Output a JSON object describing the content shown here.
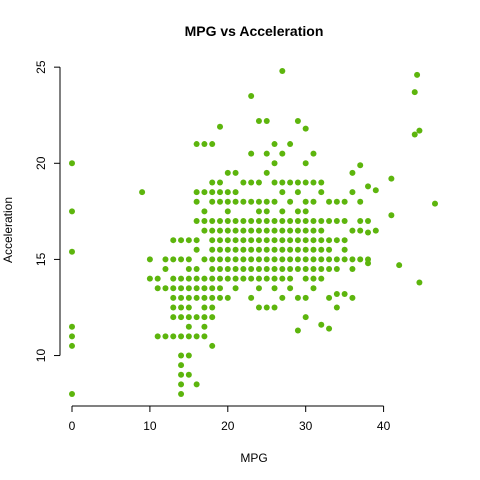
{
  "chart_data": {
    "type": "scatter",
    "title": "MPG vs Acceleration",
    "xlabel": "MPG",
    "ylabel": "Acceleration",
    "xlim": [
      0,
      46.6
    ],
    "ylim": [
      8,
      24.8
    ],
    "xticks": [
      0,
      10,
      20,
      30,
      40
    ],
    "yticks": [
      10,
      15,
      20,
      25
    ],
    "grid": false,
    "legend": "none",
    "point_color": "#5DB50D",
    "points": [
      [
        0,
        8
      ],
      [
        0,
        10.5
      ],
      [
        0,
        11
      ],
      [
        0,
        11.5
      ],
      [
        0,
        15.4
      ],
      [
        0,
        17.5
      ],
      [
        0,
        20
      ],
      [
        9,
        18.5
      ],
      [
        10,
        14
      ],
      [
        10,
        15
      ],
      [
        11,
        14
      ],
      [
        11,
        11
      ],
      [
        11,
        13.5
      ],
      [
        12,
        11
      ],
      [
        12,
        13.5
      ],
      [
        12,
        14.5
      ],
      [
        12,
        15
      ],
      [
        13,
        11
      ],
      [
        13,
        12
      ],
      [
        13,
        12.5
      ],
      [
        13,
        13
      ],
      [
        13,
        13.5
      ],
      [
        13,
        14
      ],
      [
        13,
        15
      ],
      [
        13,
        16
      ],
      [
        14,
        8
      ],
      [
        14,
        8.5
      ],
      [
        14,
        9
      ],
      [
        14,
        9.5
      ],
      [
        14,
        10
      ],
      [
        14,
        11
      ],
      [
        14,
        12
      ],
      [
        14,
        12.5
      ],
      [
        14,
        13
      ],
      [
        14,
        13.5
      ],
      [
        14,
        14
      ],
      [
        14,
        15
      ],
      [
        14,
        16
      ],
      [
        15,
        9
      ],
      [
        15,
        10
      ],
      [
        15,
        11
      ],
      [
        15,
        11.5
      ],
      [
        15,
        12
      ],
      [
        15,
        12.5
      ],
      [
        15,
        13
      ],
      [
        15,
        13.5
      ],
      [
        15,
        14
      ],
      [
        15,
        14.5
      ],
      [
        15,
        15
      ],
      [
        15,
        16
      ],
      [
        16,
        8.5
      ],
      [
        16,
        11
      ],
      [
        16,
        12
      ],
      [
        16,
        13
      ],
      [
        16,
        13.5
      ],
      [
        16,
        14
      ],
      [
        16,
        14.5
      ],
      [
        16,
        15.5
      ],
      [
        16,
        16
      ],
      [
        16,
        17
      ],
      [
        16,
        18
      ],
      [
        16,
        21
      ],
      [
        16,
        18.5
      ],
      [
        17,
        11
      ],
      [
        17,
        12
      ],
      [
        17,
        13
      ],
      [
        17,
        13.5
      ],
      [
        17,
        14
      ],
      [
        17,
        15
      ],
      [
        17,
        16.5
      ],
      [
        17,
        17
      ],
      [
        17,
        17.5
      ],
      [
        17,
        18.5
      ],
      [
        17,
        21
      ],
      [
        17,
        11.5
      ],
      [
        17,
        12.5
      ],
      [
        18,
        10.5
      ],
      [
        18,
        12
      ],
      [
        18,
        13
      ],
      [
        18,
        13.5
      ],
      [
        18,
        14
      ],
      [
        18,
        15
      ],
      [
        18,
        15.5
      ],
      [
        18,
        16
      ],
      [
        18,
        16.5
      ],
      [
        18,
        17
      ],
      [
        18,
        18
      ],
      [
        18,
        18.5
      ],
      [
        18,
        19
      ],
      [
        18,
        21
      ],
      [
        18,
        14.5
      ],
      [
        18,
        12.5
      ],
      [
        19,
        13
      ],
      [
        19,
        13.5
      ],
      [
        19,
        14
      ],
      [
        19,
        15
      ],
      [
        19,
        15.5
      ],
      [
        19,
        16
      ],
      [
        19,
        16.5
      ],
      [
        19,
        17
      ],
      [
        19,
        18
      ],
      [
        19,
        18.5
      ],
      [
        19,
        19
      ],
      [
        19,
        21.9
      ],
      [
        19,
        14.5
      ],
      [
        20,
        13
      ],
      [
        20,
        14
      ],
      [
        20,
        15
      ],
      [
        20,
        15.5
      ],
      [
        20,
        16
      ],
      [
        20,
        17
      ],
      [
        20,
        17.5
      ],
      [
        20,
        18
      ],
      [
        20,
        18.5
      ],
      [
        20,
        19.5
      ],
      [
        20,
        14.5
      ],
      [
        20,
        16.5
      ],
      [
        21,
        13.5
      ],
      [
        21,
        14
      ],
      [
        21,
        14.5
      ],
      [
        21,
        15
      ],
      [
        21,
        15.5
      ],
      [
        21,
        16
      ],
      [
        21,
        16.5
      ],
      [
        21,
        17
      ],
      [
        21,
        18
      ],
      [
        21,
        18.5
      ],
      [
        21,
        19.5
      ],
      [
        22,
        14
      ],
      [
        22,
        14.5
      ],
      [
        22,
        15
      ],
      [
        22,
        16
      ],
      [
        22,
        16.5
      ],
      [
        22,
        17
      ],
      [
        22,
        18
      ],
      [
        22,
        19
      ],
      [
        22,
        15.5
      ],
      [
        23,
        13
      ],
      [
        23,
        14
      ],
      [
        23,
        14.5
      ],
      [
        23,
        15
      ],
      [
        23,
        15.5
      ],
      [
        23,
        16
      ],
      [
        23,
        16.5
      ],
      [
        23,
        17
      ],
      [
        23,
        18
      ],
      [
        23,
        19
      ],
      [
        23,
        20.5
      ],
      [
        23,
        23.5
      ],
      [
        24,
        12.5
      ],
      [
        24,
        14
      ],
      [
        24,
        14.5
      ],
      [
        24,
        15
      ],
      [
        24,
        15.5
      ],
      [
        24,
        16
      ],
      [
        24,
        16.5
      ],
      [
        24,
        17
      ],
      [
        24,
        17.5
      ],
      [
        24,
        18
      ],
      [
        24,
        19
      ],
      [
        24,
        22.2
      ],
      [
        24,
        13.5
      ],
      [
        25,
        12.5
      ],
      [
        25,
        14
      ],
      [
        25,
        14.5
      ],
      [
        25,
        15
      ],
      [
        25,
        15.5
      ],
      [
        25,
        16
      ],
      [
        25,
        16.5
      ],
      [
        25,
        17
      ],
      [
        25,
        17.5
      ],
      [
        25,
        18
      ],
      [
        25,
        19.5
      ],
      [
        25,
        20.5
      ],
      [
        25,
        22.2
      ],
      [
        26,
        12.5
      ],
      [
        26,
        13.5
      ],
      [
        26,
        14
      ],
      [
        26,
        14.5
      ],
      [
        26,
        15
      ],
      [
        26,
        15.5
      ],
      [
        26,
        16
      ],
      [
        26,
        16.5
      ],
      [
        26,
        17
      ],
      [
        26,
        18
      ],
      [
        26,
        19
      ],
      [
        26,
        20
      ],
      [
        26,
        21
      ],
      [
        27,
        13
      ],
      [
        27,
        14
      ],
      [
        27,
        14.5
      ],
      [
        27,
        15
      ],
      [
        27,
        15.5
      ],
      [
        27,
        16
      ],
      [
        27,
        16.5
      ],
      [
        27,
        17
      ],
      [
        27,
        17.5
      ],
      [
        27,
        18.5
      ],
      [
        27,
        19
      ],
      [
        27,
        20.5
      ],
      [
        27,
        24.8
      ],
      [
        28,
        13.5
      ],
      [
        28,
        14
      ],
      [
        28,
        14.5
      ],
      [
        28,
        15
      ],
      [
        28,
        15.5
      ],
      [
        28,
        16
      ],
      [
        28,
        16.5
      ],
      [
        28,
        17
      ],
      [
        28,
        18
      ],
      [
        28,
        19
      ],
      [
        28,
        21
      ],
      [
        29,
        11.3
      ],
      [
        29,
        13
      ],
      [
        29,
        14.5
      ],
      [
        29,
        15
      ],
      [
        29,
        16
      ],
      [
        29,
        16.5
      ],
      [
        29,
        17
      ],
      [
        29,
        17.5
      ],
      [
        29,
        18.5
      ],
      [
        29,
        19
      ],
      [
        29,
        22.2
      ],
      [
        29,
        15.5
      ],
      [
        30,
        12
      ],
      [
        30,
        13
      ],
      [
        30,
        14
      ],
      [
        30,
        14.5
      ],
      [
        30,
        15
      ],
      [
        30,
        15.5
      ],
      [
        30,
        16
      ],
      [
        30,
        16.5
      ],
      [
        30,
        17
      ],
      [
        30,
        17.5
      ],
      [
        30,
        18
      ],
      [
        30,
        19
      ],
      [
        30,
        20
      ],
      [
        30,
        21.8
      ],
      [
        31,
        13.5
      ],
      [
        31,
        14
      ],
      [
        31,
        14.5
      ],
      [
        31,
        15
      ],
      [
        31,
        15.5
      ],
      [
        31,
        16
      ],
      [
        31,
        16.5
      ],
      [
        31,
        17
      ],
      [
        31,
        18
      ],
      [
        31,
        19
      ],
      [
        31,
        20.5
      ],
      [
        32,
        11.6
      ],
      [
        32,
        14.5
      ],
      [
        32,
        15
      ],
      [
        32,
        15.5
      ],
      [
        32,
        16
      ],
      [
        32,
        16.5
      ],
      [
        32,
        17
      ],
      [
        32,
        18.5
      ],
      [
        32,
        19
      ],
      [
        32,
        14
      ],
      [
        33,
        11.4
      ],
      [
        33,
        13
      ],
      [
        33,
        15
      ],
      [
        33,
        15.5
      ],
      [
        33,
        16
      ],
      [
        33,
        17
      ],
      [
        33,
        18
      ],
      [
        33,
        14.5
      ],
      [
        34,
        12.5
      ],
      [
        34,
        13.2
      ],
      [
        34,
        14.5
      ],
      [
        34,
        15
      ],
      [
        34,
        16
      ],
      [
        34,
        17
      ],
      [
        34,
        18
      ],
      [
        35,
        13.2
      ],
      [
        35,
        15
      ],
      [
        35,
        15.5
      ],
      [
        35,
        16
      ],
      [
        35,
        17
      ],
      [
        35,
        18
      ],
      [
        36,
        13
      ],
      [
        36,
        14.5
      ],
      [
        36,
        15
      ],
      [
        36,
        16.5
      ],
      [
        36,
        18.5
      ],
      [
        36,
        19.5
      ],
      [
        37,
        15
      ],
      [
        37,
        16.5
      ],
      [
        37,
        17
      ],
      [
        37,
        18
      ],
      [
        37,
        19.9
      ],
      [
        38,
        14.8
      ],
      [
        38,
        15
      ],
      [
        38,
        16.4
      ],
      [
        38,
        17
      ],
      [
        38,
        18.8
      ],
      [
        39,
        16.5
      ],
      [
        39,
        18.6
      ],
      [
        41,
        17.3
      ],
      [
        41,
        19.2
      ],
      [
        42,
        14.7
      ],
      [
        44,
        21.5
      ],
      [
        44,
        23.7
      ],
      [
        44.3,
        24.6
      ],
      [
        44.6,
        21.7
      ],
      [
        44.6,
        13.8
      ],
      [
        46.6,
        17.9
      ]
    ]
  }
}
